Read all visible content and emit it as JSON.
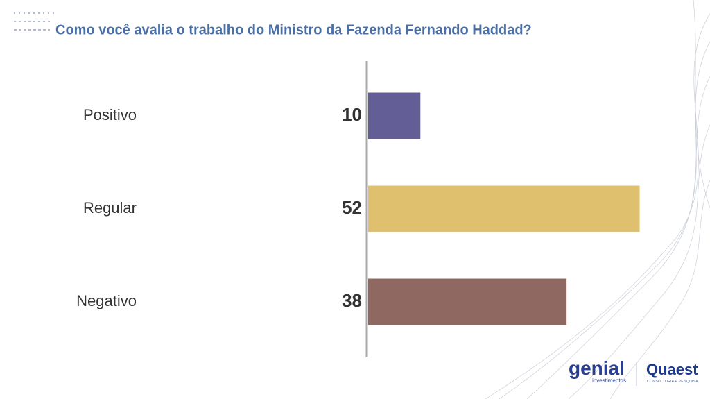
{
  "chart_data": {
    "type": "bar",
    "orientation": "horizontal",
    "title": "Como você avalia o trabalho do Ministro da Fazenda Fernando Haddad?",
    "categories": [
      "Positivo",
      "Regular",
      "Negativo"
    ],
    "values": [
      10,
      52,
      38
    ],
    "colors": [
      "#635e96",
      "#dfc06f",
      "#8f6862"
    ]
  },
  "logos": [
    "genial",
    "investimentos",
    "Quaest",
    "CONSULTORIA E PESQUISA"
  ]
}
